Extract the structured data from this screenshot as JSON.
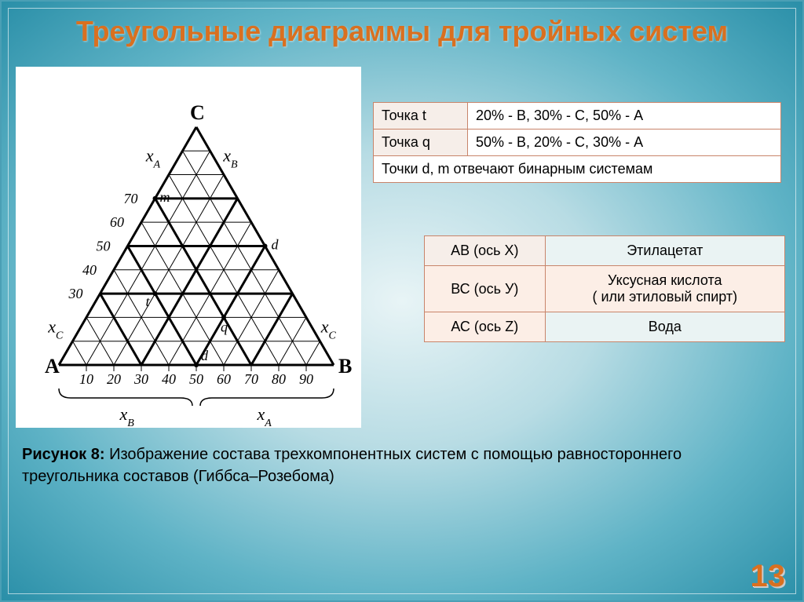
{
  "title": "Треугольные диаграммы для тройных систем",
  "page_number": "13",
  "colors": {
    "title_color": "#d97020",
    "border_color": "#c8846a",
    "bg_center": "#e8f4f6",
    "bg_edge": "#2a8fa8"
  },
  "table_points": {
    "rows": [
      {
        "label": "Точка t",
        "value": "20% - B, 30% - C, 50% - А"
      },
      {
        "label": "Точка q",
        "value": "50% - B, 20% - C, 30% - А"
      },
      {
        "label_span": "Точки d, m отвечают бинарным системам"
      }
    ]
  },
  "table_axes": {
    "rows": [
      {
        "axis": "АВ (ось Х)",
        "substance": "Этилацетат"
      },
      {
        "axis": "ВС (ось У)",
        "substance": "Уксусная кислота\n( или этиловый спирт)"
      },
      {
        "axis": "АС (ось Z)",
        "substance": "Вода"
      }
    ]
  },
  "caption": {
    "label": "Рисунок 8:",
    "text": " Изображение состава трехкомпонентных систем с помощью равностороннего треугольника составов (Гиббса–Розебома)"
  },
  "diagram": {
    "type": "ternary",
    "vertices": {
      "A": "A",
      "B": "B",
      "C": "C"
    },
    "axis_labels": {
      "xA": "x",
      "xB": "x",
      "xC": "x",
      "subA": "A",
      "subB": "B",
      "subC": "C"
    },
    "bottom_ticks": [
      "10",
      "20",
      "30",
      "40",
      "50",
      "60",
      "70",
      "80",
      "90"
    ],
    "left_ticks": [
      "30",
      "40",
      "50",
      "60",
      "70"
    ],
    "points": {
      "t": {
        "label": "t",
        "a": 50,
        "b": 20,
        "c": 30
      },
      "q": {
        "label": "q",
        "a": 30,
        "b": 50,
        "c": 20
      },
      "d_right": {
        "label": "d",
        "on_edge": "BC",
        "frac": 0.5
      },
      "m_left": {
        "label": "m",
        "on_edge": "AC",
        "frac": 0.7
      },
      "d_bottom": {
        "label": "d",
        "on_edge": "AB",
        "frac": 0.5
      }
    },
    "thick_sublines_every": 30,
    "line_color": "#000000",
    "background": "#ffffff"
  }
}
